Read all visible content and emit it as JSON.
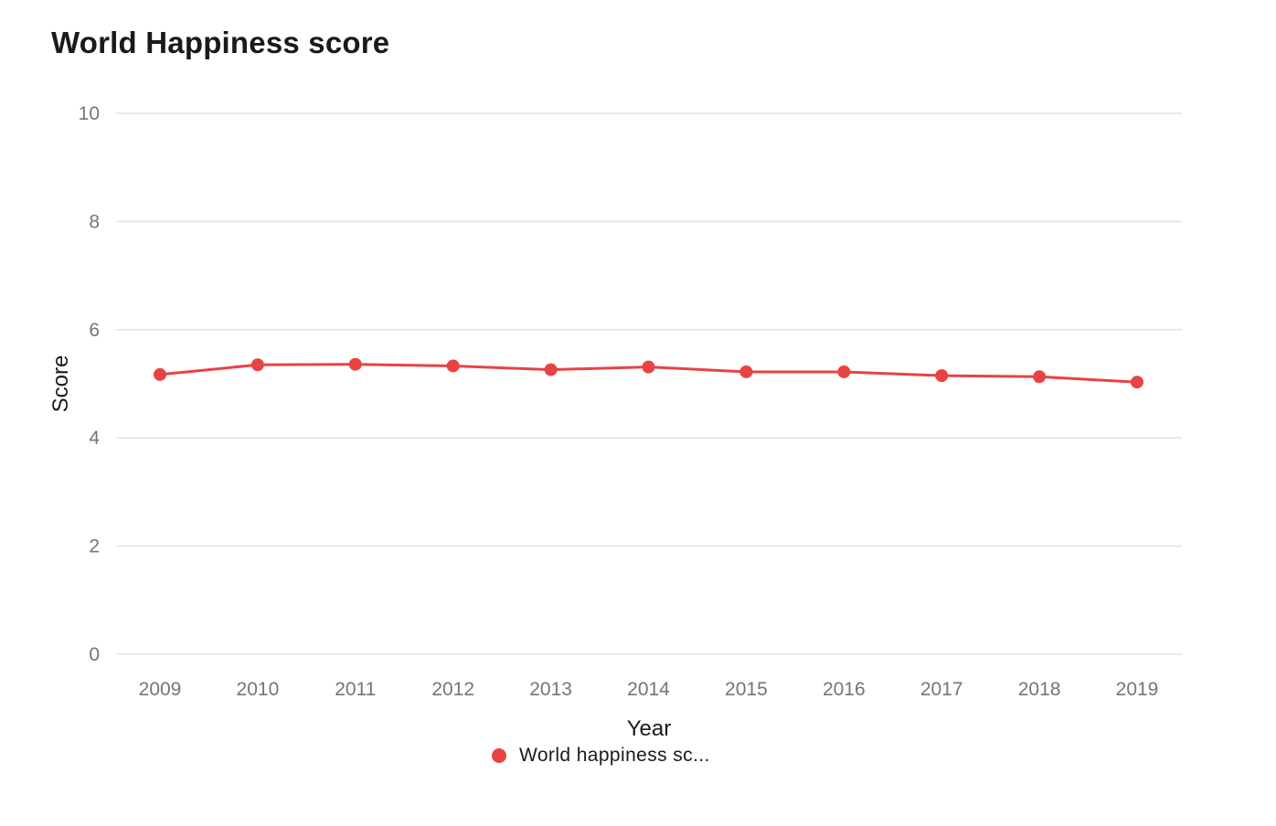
{
  "colors": {
    "series": "#e84343"
  },
  "chart_data": {
    "type": "line",
    "title": "World Happiness score",
    "xlabel": "Year",
    "ylabel": "Score",
    "x": [
      "2009",
      "2010",
      "2011",
      "2012",
      "2013",
      "2014",
      "2015",
      "2016",
      "2017",
      "2018",
      "2019"
    ],
    "ylim": [
      0,
      10
    ],
    "yticks": [
      "0",
      "2",
      "4",
      "6",
      "8",
      "10"
    ],
    "grid": true,
    "legend_position": "bottom",
    "series": [
      {
        "name": "World happiness sc...",
        "values": [
          5.17,
          5.35,
          5.36,
          5.33,
          5.26,
          5.31,
          5.22,
          5.22,
          5.15,
          5.13,
          5.03
        ]
      }
    ]
  }
}
